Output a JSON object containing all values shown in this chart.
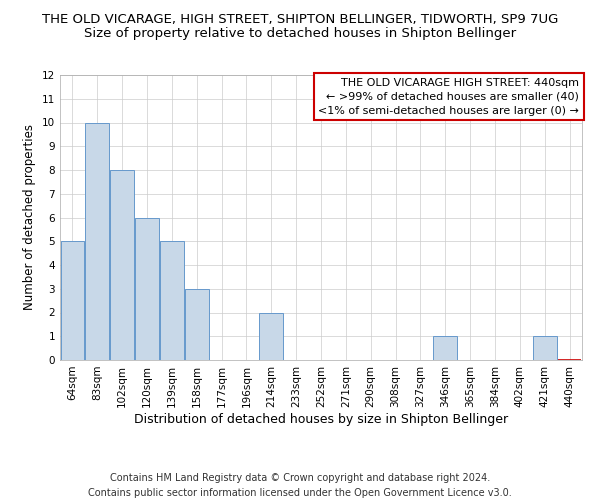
{
  "title": "THE OLD VICARAGE, HIGH STREET, SHIPTON BELLINGER, TIDWORTH, SP9 7UG",
  "subtitle": "Size of property relative to detached houses in Shipton Bellinger",
  "xlabel": "Distribution of detached houses by size in Shipton Bellinger",
  "ylabel": "Number of detached properties",
  "footnote1": "Contains HM Land Registry data © Crown copyright and database right 2024.",
  "footnote2": "Contains public sector information licensed under the Open Government Licence v3.0.",
  "bin_labels": [
    "64sqm",
    "83sqm",
    "102sqm",
    "120sqm",
    "139sqm",
    "158sqm",
    "177sqm",
    "196sqm",
    "214sqm",
    "233sqm",
    "252sqm",
    "271sqm",
    "290sqm",
    "308sqm",
    "327sqm",
    "346sqm",
    "365sqm",
    "384sqm",
    "402sqm",
    "421sqm",
    "440sqm"
  ],
  "values": [
    5,
    10,
    8,
    6,
    5,
    3,
    0,
    0,
    2,
    0,
    0,
    0,
    0,
    0,
    0,
    1,
    0,
    0,
    0,
    1,
    0
  ],
  "bar_color": "#c8d8e8",
  "bar_edge_color": "#6699cc",
  "highlight_bar_index": 20,
  "highlight_bar_edge_color": "#cc0000",
  "annotation_box_text": "THE OLD VICARAGE HIGH STREET: 440sqm\n← >99% of detached houses are smaller (40)\n<1% of semi-detached houses are larger (0) →",
  "annotation_box_color": "#ffffff",
  "annotation_box_edge_color": "#cc0000",
  "ylim": [
    0,
    12
  ],
  "yticks": [
    0,
    1,
    2,
    3,
    4,
    5,
    6,
    7,
    8,
    9,
    10,
    11,
    12
  ],
  "grid_color": "#cccccc",
  "background_color": "#ffffff",
  "title_fontsize": 9.5,
  "subtitle_fontsize": 9.5,
  "xlabel_fontsize": 9,
  "ylabel_fontsize": 8.5,
  "tick_fontsize": 7.5,
  "annotation_fontsize": 8,
  "footnote_fontsize": 7
}
